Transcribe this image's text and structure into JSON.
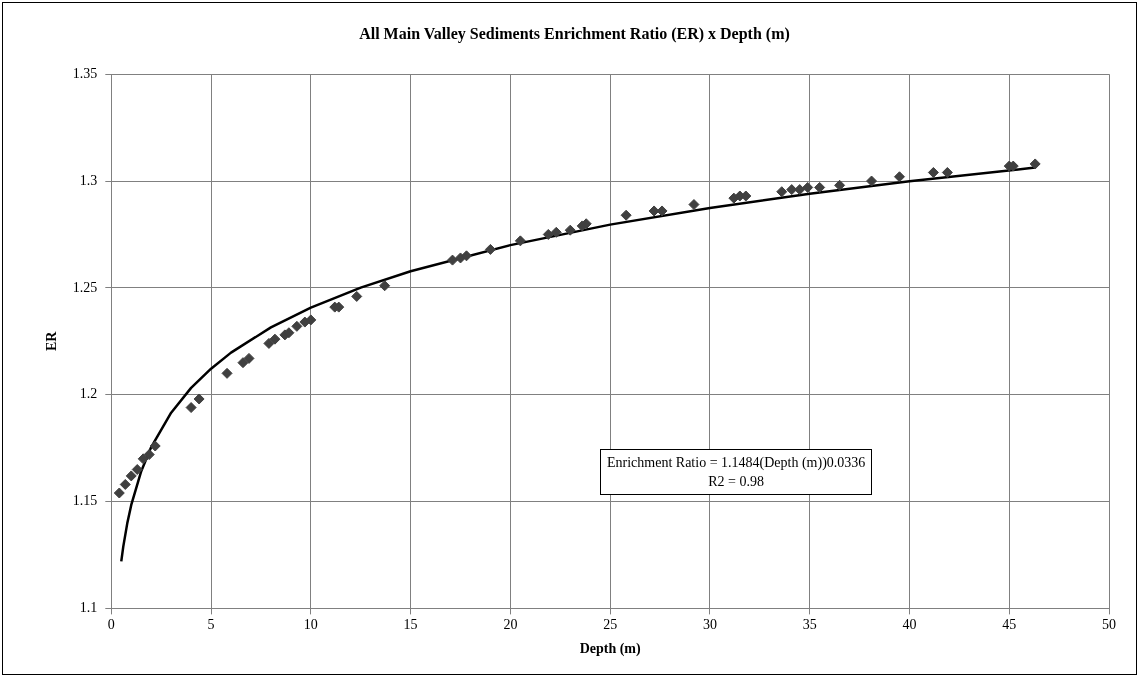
{
  "chart_data": {
    "type": "scatter",
    "title": "All Main Valley Sediments Enrichment Ratio (ER) x Depth (m)",
    "xlabel": "Depth (m)",
    "ylabel": "ER",
    "xlim": [
      0,
      50
    ],
    "xticks": [
      0,
      5,
      10,
      15,
      20,
      25,
      30,
      35,
      40,
      45,
      50
    ],
    "ylim": [
      1.1,
      1.35
    ],
    "yticks": [
      1.1,
      1.15,
      1.2,
      1.25,
      1.3,
      1.35
    ],
    "grid": true,
    "legend": false,
    "annotations": [
      "Enrichment Ratio = 1.1484(Depth (m))0.0336",
      "R2 = 0.98"
    ],
    "series": [
      {
        "type": "scatter",
        "marker": "diamond",
        "color": "#404040",
        "x": [
          0.4,
          0.7,
          1.0,
          1.3,
          1.6,
          1.9,
          2.2,
          4.0,
          4.4,
          5.8,
          6.6,
          6.9,
          7.9,
          8.2,
          8.7,
          8.9,
          9.3,
          9.7,
          10.0,
          11.2,
          11.4,
          12.3,
          13.7,
          17.1,
          17.5,
          17.8,
          19.0,
          20.5,
          21.9,
          22.3,
          23.0,
          23.6,
          23.8,
          25.8,
          27.2,
          27.6,
          29.2,
          31.2,
          31.5,
          31.8,
          33.6,
          34.1,
          34.5,
          34.9,
          35.5,
          36.5,
          38.1,
          39.5,
          41.2,
          41.9,
          45.0,
          45.2,
          46.3
        ],
        "values": [
          1.154,
          1.158,
          1.162,
          1.165,
          1.17,
          1.172,
          1.176,
          1.194,
          1.198,
          1.21,
          1.215,
          1.217,
          1.224,
          1.226,
          1.228,
          1.229,
          1.232,
          1.234,
          1.235,
          1.241,
          1.241,
          1.246,
          1.251,
          1.263,
          1.264,
          1.265,
          1.268,
          1.272,
          1.275,
          1.276,
          1.277,
          1.279,
          1.28,
          1.284,
          1.286,
          1.286,
          1.289,
          1.292,
          1.293,
          1.293,
          1.295,
          1.296,
          1.296,
          1.297,
          1.297,
          1.298,
          1.3,
          1.302,
          1.304,
          1.304,
          1.307,
          1.307,
          1.308
        ]
      },
      {
        "type": "line",
        "marker": "none",
        "line_style": "solid",
        "color": "#000000",
        "x": [
          0.5,
          0.6,
          0.8,
          1,
          1.5,
          2,
          3,
          4,
          5,
          6,
          8,
          10,
          12.5,
          15,
          20,
          25,
          30,
          35,
          40,
          46.3
        ],
        "values": [
          1.122,
          1.1289,
          1.1398,
          1.1484,
          1.1642,
          1.1755,
          1.1916,
          1.2032,
          1.2122,
          1.2197,
          1.2315,
          1.2408,
          1.2501,
          1.2578,
          1.27,
          1.2796,
          1.2874,
          1.2941,
          1.2999,
          1.3063
        ]
      }
    ]
  }
}
